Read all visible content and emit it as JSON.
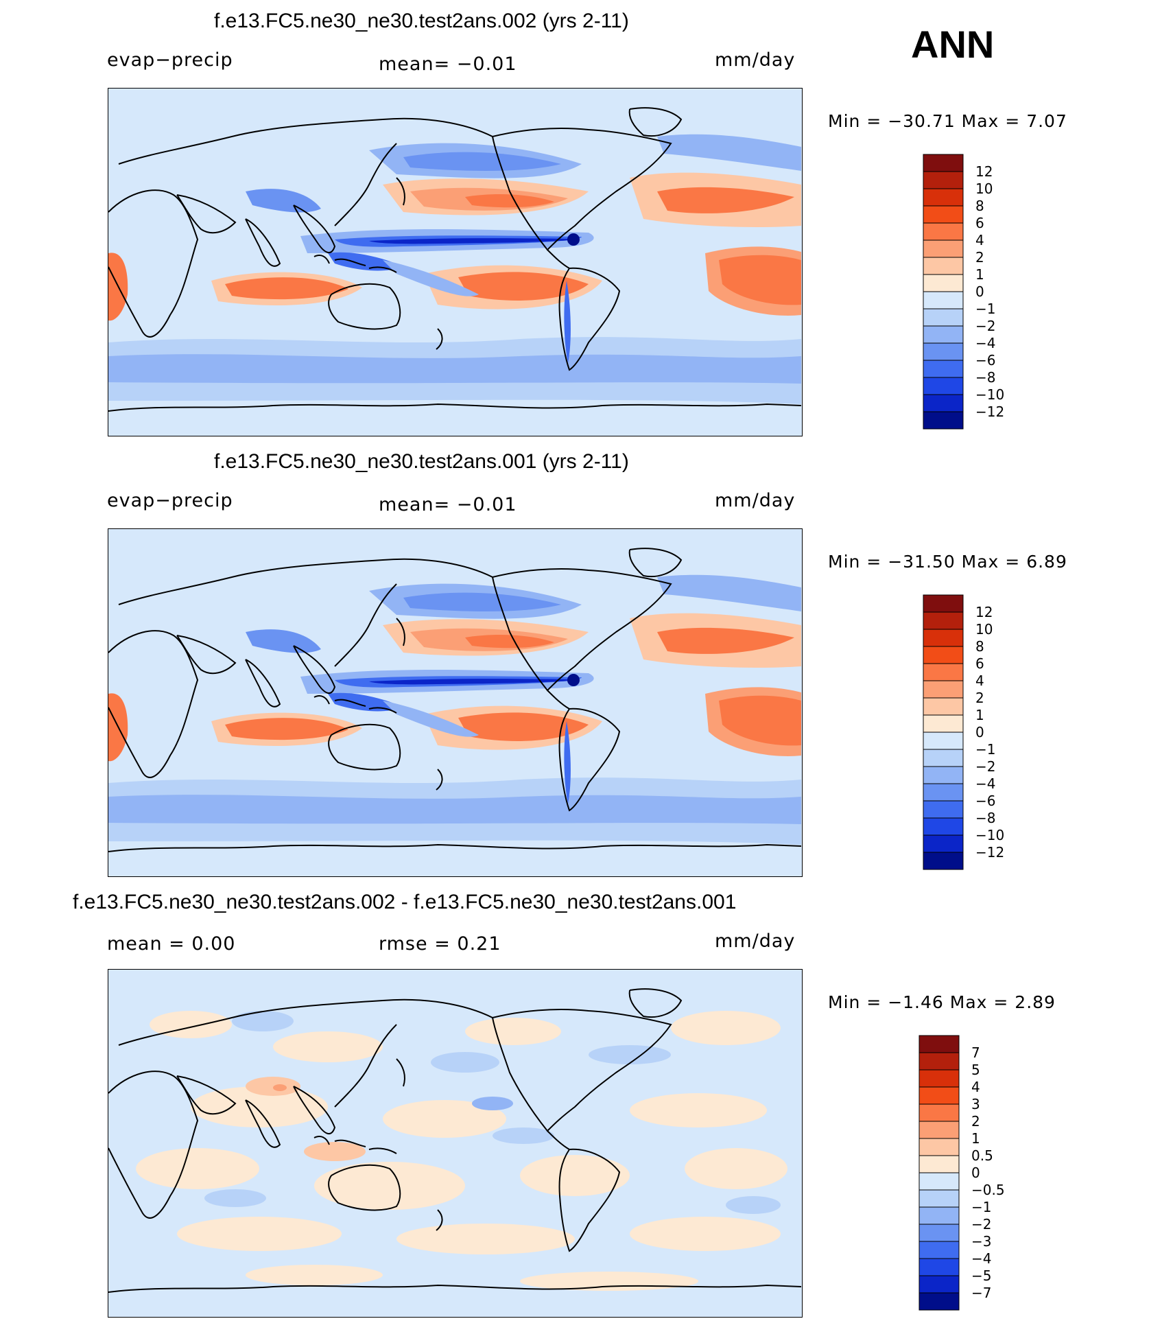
{
  "season": "ANN",
  "panels": [
    {
      "title": "f.e13.FC5.ne30_ne30.test2ans.002 (yrs 2-11)",
      "left_label": "evap−precip",
      "center_label": "mean=   −0.01",
      "right_label": "mm/day",
      "minmax": "Min  =  −30.71  Max  =     7.07",
      "colorbar": {
        "labels": [
          "12",
          "10",
          "8",
          "6",
          "4",
          "2",
          "1",
          "0",
          "−1",
          "−2",
          "−4",
          "−6",
          "−8",
          "−10",
          "−12"
        ],
        "colors": [
          "#7f0e0e",
          "#b3200c",
          "#d8300a",
          "#f24d17",
          "#fa7745",
          "#fb9f75",
          "#fdc7a5",
          "#fde9d3",
          "#d6e8fb",
          "#b7d2f8",
          "#92b4f5",
          "#6a93f2",
          "#3f6cf0",
          "#1f47e6",
          "#0b25c8",
          "#000e8a"
        ]
      },
      "map_variant": "model"
    },
    {
      "title": "f.e13.FC5.ne30_ne30.test2ans.001 (yrs 2-11)",
      "left_label": "evap−precip",
      "center_label": "mean=   −0.01",
      "right_label": "mm/day",
      "minmax": "Min  =  −31.50  Max  =     6.89",
      "colorbar": {
        "labels": [
          "12",
          "10",
          "8",
          "6",
          "4",
          "2",
          "1",
          "0",
          "−1",
          "−2",
          "−4",
          "−6",
          "−8",
          "−10",
          "−12"
        ],
        "colors": [
          "#7f0e0e",
          "#b3200c",
          "#d8300a",
          "#f24d17",
          "#fa7745",
          "#fb9f75",
          "#fdc7a5",
          "#fde9d3",
          "#d6e8fb",
          "#b7d2f8",
          "#92b4f5",
          "#6a93f2",
          "#3f6cf0",
          "#1f47e6",
          "#0b25c8",
          "#000e8a"
        ]
      },
      "map_variant": "model"
    },
    {
      "title": "f.e13.FC5.ne30_ne30.test2ans.002 - f.e13.FC5.ne30_ne30.test2ans.001",
      "left_label": "mean  =     0.00",
      "center_label": "rmse  =     0.21",
      "right_label": "mm/day",
      "minmax": "Min  =    −1.46  Max  =     2.89",
      "colorbar": {
        "labels": [
          "7",
          "5",
          "4",
          "3",
          "2",
          "1",
          "0.5",
          "0",
          "−0.5",
          "−1",
          "−2",
          "−3",
          "−4",
          "−5",
          "−7"
        ],
        "colors": [
          "#7f0e0e",
          "#b3200c",
          "#d8300a",
          "#f24d17",
          "#fa7745",
          "#fb9f75",
          "#fdc7a5",
          "#fde9d3",
          "#d6e8fb",
          "#b7d2f8",
          "#92b4f5",
          "#6a93f2",
          "#3f6cf0",
          "#1f47e6",
          "#0b25c8",
          "#000e8a"
        ]
      },
      "map_variant": "diff"
    }
  ],
  "chart_data": [
    {
      "type": "heatmap",
      "title": "f.e13.FC5.ne30_ne30.test2ans.002 (yrs 2-11)",
      "variable": "evap−precip",
      "units": "mm/day",
      "mean": -0.01,
      "min": -30.71,
      "max": 7.07,
      "levels": [
        -12,
        -10,
        -8,
        -6,
        -4,
        -2,
        -1,
        0,
        1,
        2,
        4,
        6,
        8,
        10,
        12
      ]
    },
    {
      "type": "heatmap",
      "title": "f.e13.FC5.ne30_ne30.test2ans.001 (yrs 2-11)",
      "variable": "evap−precip",
      "units": "mm/day",
      "mean": -0.01,
      "min": -31.5,
      "max": 6.89,
      "levels": [
        -12,
        -10,
        -8,
        -6,
        -4,
        -2,
        -1,
        0,
        1,
        2,
        4,
        6,
        8,
        10,
        12
      ]
    },
    {
      "type": "heatmap",
      "title": "f.e13.FC5.ne30_ne30.test2ans.002 - f.e13.FC5.ne30_ne30.test2ans.001",
      "units": "mm/day",
      "mean": 0.0,
      "rmse": 0.21,
      "min": -1.46,
      "max": 2.89,
      "levels": [
        -7,
        -5,
        -4,
        -3,
        -2,
        -1,
        -0.5,
        0,
        0.5,
        1,
        2,
        3,
        4,
        5,
        7
      ]
    }
  ]
}
